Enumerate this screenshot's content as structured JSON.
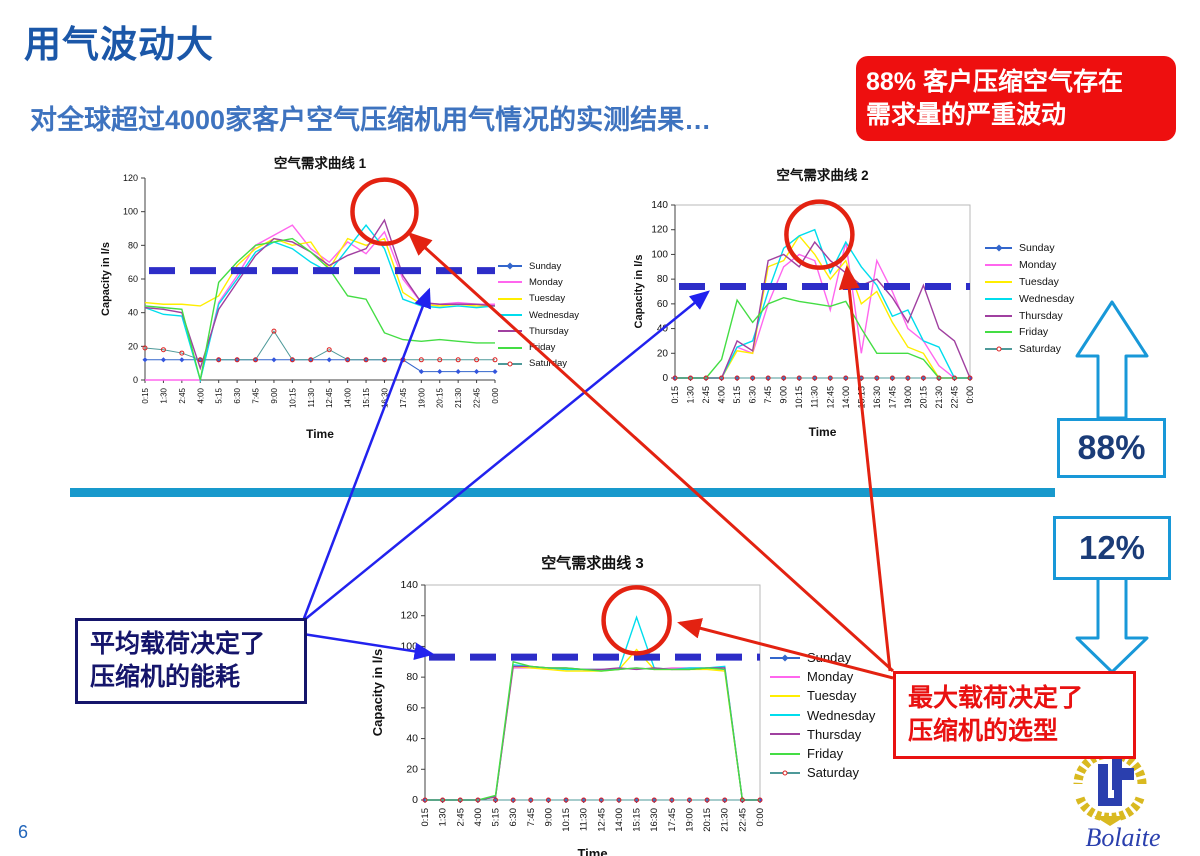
{
  "slide": {
    "title": "用气波动大",
    "subtitle": "对全球超过4000家客户空气压缩机用气情况的实测结果…",
    "page_number": "6"
  },
  "callouts": {
    "top_right_line1": "88% 客户压缩空气存在",
    "top_right_line2": "需求量的严重波动",
    "pct_high": "88%",
    "pct_low": "12%",
    "avg_load_line1": "平均载荷决定了",
    "avg_load_line2": "压缩机的能耗",
    "max_load_line1": "最大载荷决定了",
    "max_load_line2": "压缩机的选型"
  },
  "logo": {
    "name": "Bolaite"
  },
  "colors": {
    "accent_blue": "#1899cc",
    "dark_blue": "#1b57a8",
    "callout_red": "#ee0f0f",
    "threshold_dash": "#2d2dc8",
    "annotation_red": "#e32211",
    "annotation_blue": "#2222ee"
  },
  "chart_data": [
    {
      "type": "line",
      "title": "空气需求曲线 1",
      "xlabel": "Time",
      "ylabel": "Capacity in l/s",
      "ylim": [
        0,
        120
      ],
      "ytick_step": 20,
      "grid": false,
      "legend_position": "right",
      "threshold_dashed_line": 65,
      "annotation_circle": {
        "xi": 13,
        "y": 100,
        "r": 32
      },
      "categories": [
        "0:15",
        "1:30",
        "2:45",
        "4:00",
        "5:15",
        "6:30",
        "7:45",
        "9:00",
        "10:15",
        "11:30",
        "12:45",
        "14:00",
        "15:15",
        "16:30",
        "17:45",
        "19:00",
        "20:15",
        "21:30",
        "22:45",
        "0:00"
      ],
      "series": [
        {
          "name": "Sunday",
          "color": "#3366cc",
          "marker": "diamond",
          "values": [
            12,
            12,
            12,
            12,
            12,
            12,
            12,
            12,
            12,
            12,
            12,
            12,
            12,
            12,
            12,
            5,
            5,
            5,
            5,
            5
          ]
        },
        {
          "name": "Monday",
          "color": "#ff66ee",
          "marker": null,
          "values": [
            0,
            0,
            0,
            0,
            46,
            62,
            80,
            86,
            92,
            78,
            70,
            82,
            75,
            88,
            60,
            46,
            45,
            46,
            45,
            45
          ]
        },
        {
          "name": "Tuesday",
          "color": "#ffee00",
          "marker": null,
          "values": [
            46,
            45,
            45,
            44,
            50,
            68,
            78,
            84,
            80,
            82,
            66,
            84,
            80,
            84,
            52,
            45,
            44,
            45,
            44,
            44
          ]
        },
        {
          "name": "Wednesday",
          "color": "#00dded",
          "marker": null,
          "values": [
            43,
            39,
            38,
            0,
            45,
            60,
            76,
            82,
            78,
            70,
            64,
            78,
            92,
            78,
            48,
            44,
            43,
            44,
            43,
            44
          ]
        },
        {
          "name": "Thursday",
          "color": "#a040a0",
          "marker": null,
          "values": [
            43,
            42,
            40,
            7,
            42,
            58,
            74,
            84,
            82,
            76,
            68,
            74,
            78,
            95,
            62,
            46,
            45,
            45,
            45,
            44
          ]
        },
        {
          "name": "Friday",
          "color": "#44dd44",
          "marker": null,
          "values": [
            44,
            43,
            42,
            0,
            58,
            70,
            80,
            82,
            84,
            76,
            66,
            50,
            48,
            28,
            24,
            23,
            24,
            23,
            22,
            22
          ]
        },
        {
          "name": "Saturday",
          "color": "#4d9999",
          "marker": "circle",
          "values": [
            19,
            18,
            16,
            12,
            12,
            12,
            12,
            29,
            12,
            12,
            18,
            12,
            12,
            12,
            12,
            12,
            12,
            12,
            12,
            12
          ]
        }
      ]
    },
    {
      "type": "line",
      "title": "空气需求曲线 2",
      "xlabel": "Time",
      "ylabel": "Capacity in l/s",
      "ylim": [
        0,
        140
      ],
      "ytick_step": 20,
      "grid": false,
      "legend_position": "right",
      "threshold_dashed_line": 74,
      "annotation_circle": {
        "xi": 9.3,
        "y": 116,
        "r": 33
      },
      "categories": [
        "0:15",
        "1:30",
        "2:45",
        "4:00",
        "5:15",
        "6:30",
        "7:45",
        "9:00",
        "10:15",
        "11:30",
        "12:45",
        "14:00",
        "15:15",
        "16:30",
        "17:45",
        "19:00",
        "20:15",
        "21:30",
        "22:45",
        "0:00"
      ],
      "series": [
        {
          "name": "Sunday",
          "color": "#3366cc",
          "marker": "diamond",
          "values": [
            0,
            0,
            0,
            0,
            0,
            0,
            0,
            0,
            0,
            0,
            0,
            0,
            0,
            0,
            0,
            0,
            0,
            0,
            0,
            0
          ]
        },
        {
          "name": "Monday",
          "color": "#ff66ee",
          "marker": null,
          "values": [
            0,
            0,
            0,
            0,
            25,
            20,
            60,
            90,
            100,
            95,
            55,
            110,
            20,
            95,
            70,
            40,
            30,
            10,
            0,
            0
          ]
        },
        {
          "name": "Tuesday",
          "color": "#ffee00",
          "marker": null,
          "values": [
            0,
            0,
            0,
            0,
            22,
            20,
            90,
            95,
            115,
            100,
            80,
            95,
            60,
            70,
            45,
            25,
            20,
            0,
            0,
            0
          ]
        },
        {
          "name": "Wednesday",
          "color": "#00dded",
          "marker": null,
          "values": [
            0,
            0,
            0,
            0,
            25,
            30,
            70,
            105,
            115,
            120,
            85,
            110,
            90,
            75,
            50,
            55,
            30,
            25,
            0,
            0
          ]
        },
        {
          "name": "Thursday",
          "color": "#a040a0",
          "marker": null,
          "values": [
            0,
            0,
            0,
            0,
            30,
            22,
            95,
            100,
            90,
            110,
            95,
            85,
            75,
            80,
            65,
            45,
            75,
            40,
            30,
            0
          ]
        },
        {
          "name": "Friday",
          "color": "#44dd44",
          "marker": null,
          "values": [
            0,
            0,
            0,
            15,
            63,
            45,
            60,
            65,
            62,
            60,
            58,
            62,
            40,
            20,
            20,
            20,
            15,
            0,
            0,
            0
          ]
        },
        {
          "name": "Saturday",
          "color": "#4d9999",
          "marker": "circle",
          "values": [
            0,
            0,
            0,
            0,
            0,
            0,
            0,
            0,
            0,
            0,
            0,
            0,
            0,
            0,
            0,
            0,
            0,
            0,
            0,
            0
          ]
        }
      ]
    },
    {
      "type": "line",
      "title": "空气需求曲线 3",
      "xlabel": "Time",
      "ylabel": "Capacity in l/s",
      "ylim": [
        0,
        140
      ],
      "ytick_step": 20,
      "grid": false,
      "legend_position": "right",
      "threshold_dashed_line": 93,
      "annotation_circle": {
        "xi": 12,
        "y": 117,
        "r": 33
      },
      "categories": [
        "0:15",
        "1:30",
        "2:45",
        "4:00",
        "5:15",
        "6:30",
        "7:45",
        "9:00",
        "10:15",
        "11:30",
        "12:45",
        "14:00",
        "15:15",
        "16:30",
        "17:45",
        "19:00",
        "20:15",
        "21:30",
        "22:45",
        "0:00"
      ],
      "series": [
        {
          "name": "Sunday",
          "color": "#3366cc",
          "marker": "diamond",
          "values": [
            0,
            0,
            0,
            0,
            0,
            0,
            0,
            0,
            0,
            0,
            0,
            0,
            0,
            0,
            0,
            0,
            0,
            0,
            0,
            0
          ]
        },
        {
          "name": "Monday",
          "color": "#ff66ee",
          "marker": null,
          "values": [
            0,
            0,
            0,
            0,
            2,
            86,
            86,
            86,
            85,
            85,
            85,
            85,
            86,
            85,
            86,
            86,
            86,
            86,
            0,
            0
          ]
        },
        {
          "name": "Tuesday",
          "color": "#ffee00",
          "marker": null,
          "values": [
            0,
            0,
            0,
            0,
            2,
            87,
            86,
            85,
            84,
            84,
            84,
            85,
            98,
            85,
            85,
            85,
            85,
            84,
            0,
            0
          ]
        },
        {
          "name": "Wednesday",
          "color": "#00dded",
          "marker": null,
          "values": [
            0,
            0,
            0,
            0,
            2,
            88,
            87,
            86,
            85,
            85,
            85,
            85,
            119,
            86,
            85,
            86,
            86,
            87,
            0,
            0
          ]
        },
        {
          "name": "Thursday",
          "color": "#a040a0",
          "marker": null,
          "values": [
            0,
            0,
            0,
            0,
            2,
            87,
            87,
            86,
            86,
            85,
            85,
            86,
            85,
            86,
            85,
            85,
            86,
            86,
            0,
            0
          ]
        },
        {
          "name": "Friday",
          "color": "#44dd44",
          "marker": null,
          "values": [
            0,
            0,
            0,
            0,
            3,
            90,
            87,
            86,
            86,
            85,
            84,
            85,
            86,
            85,
            85,
            85,
            86,
            85,
            0,
            0
          ]
        },
        {
          "name": "Saturday",
          "color": "#4d9999",
          "marker": "circle",
          "values": [
            0,
            0,
            0,
            0,
            0,
            0,
            0,
            0,
            0,
            0,
            0,
            0,
            0,
            0,
            0,
            0,
            0,
            0,
            0,
            0
          ]
        }
      ]
    }
  ]
}
